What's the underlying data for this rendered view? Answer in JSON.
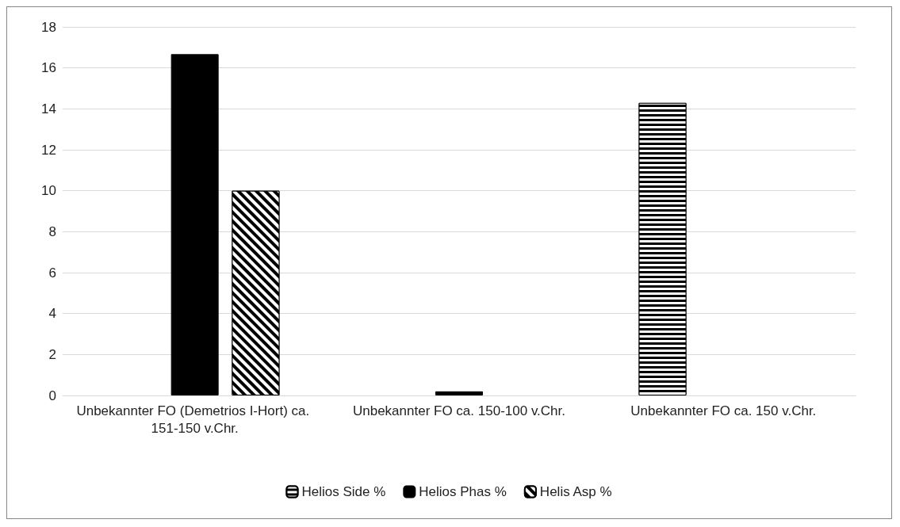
{
  "chart_data": {
    "type": "bar",
    "categories": [
      "Unbekannter FO (Demetrios I-Hort) ca. 151-150 v.Chr.",
      "Unbekannter FO ca. 150-100 v.Chr.",
      "Unbekannter FO ca. 150 v.Chr."
    ],
    "series": [
      {
        "name": "Helios Side %",
        "color": "#000000",
        "values": [
          null,
          null,
          14.29
        ]
      },
      {
        "name": "Helios Phas %",
        "color": "#000000",
        "values": [
          16.67,
          0.2,
          null
        ]
      },
      {
        "name": "Helis Asp %",
        "color": "#000000",
        "values": [
          10,
          null,
          null
        ]
      }
    ],
    "ylim": [
      0,
      18
    ],
    "yticks": [
      0,
      2,
      4,
      6,
      8,
      10,
      12,
      14,
      16,
      18
    ],
    "grid": "y",
    "legend": "bottom"
  }
}
